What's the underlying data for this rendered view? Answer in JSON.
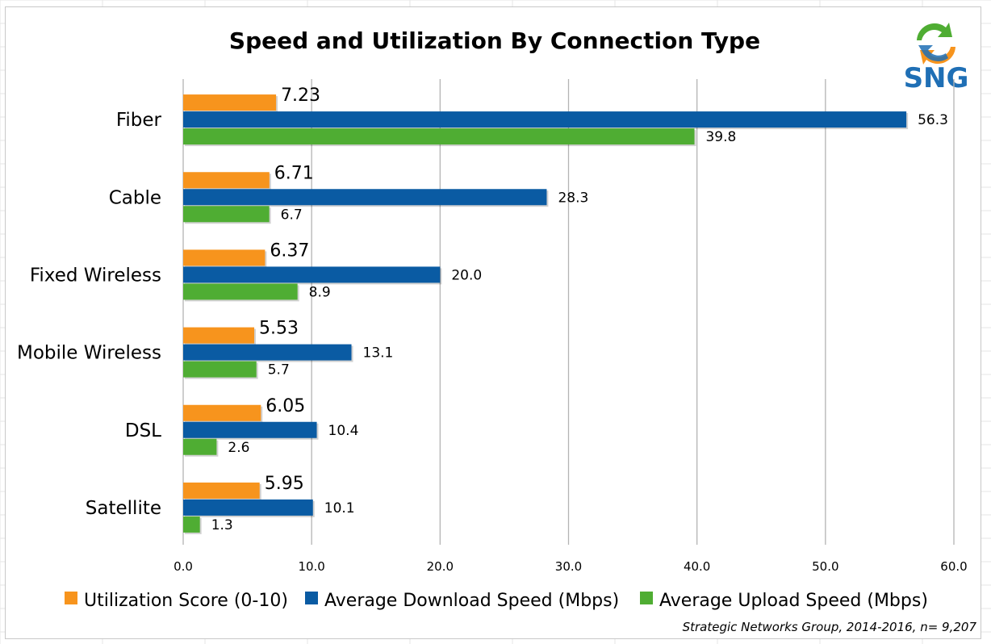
{
  "logo": {
    "text": "SNG"
  },
  "source": "Strategic Networks Group, 2014-2016, n= 9,207",
  "colors": {
    "utilization": "#f7941d",
    "download": "#0a5ba3",
    "upload": "#4fad33",
    "grid": "#b4b4b4"
  },
  "chart_data": {
    "type": "bar",
    "orientation": "horizontal",
    "title": "Speed and Utilization By Connection Type",
    "categories": [
      "Fiber",
      "Cable",
      "Fixed Wireless",
      "Mobile Wireless",
      "DSL",
      "Satellite"
    ],
    "series": [
      {
        "name": "Utilization Score (0-10)",
        "values": [
          7.23,
          6.71,
          6.37,
          5.53,
          6.05,
          5.95
        ],
        "labels": [
          "7.23",
          "6.71",
          "6.37",
          "5.53",
          "6.05",
          "5.95"
        ]
      },
      {
        "name": "Average Download Speed (Mbps)",
        "values": [
          56.3,
          28.3,
          20.0,
          13.1,
          10.4,
          10.1
        ],
        "labels": [
          "56.3",
          "28.3",
          "20.0",
          "13.1",
          "10.4",
          "10.1"
        ]
      },
      {
        "name": "Average Upload Speed (Mbps)",
        "values": [
          39.8,
          6.7,
          8.9,
          5.7,
          2.6,
          1.3
        ],
        "labels": [
          "39.8",
          "6.7",
          "8.9",
          "5.7",
          "2.6",
          "1.3"
        ]
      }
    ],
    "xlim": [
      0,
      60
    ],
    "x_ticks": [
      "0.0",
      "10.0",
      "20.0",
      "30.0",
      "40.0",
      "50.0",
      "60.0"
    ],
    "grid": true,
    "legend": "bottom"
  }
}
